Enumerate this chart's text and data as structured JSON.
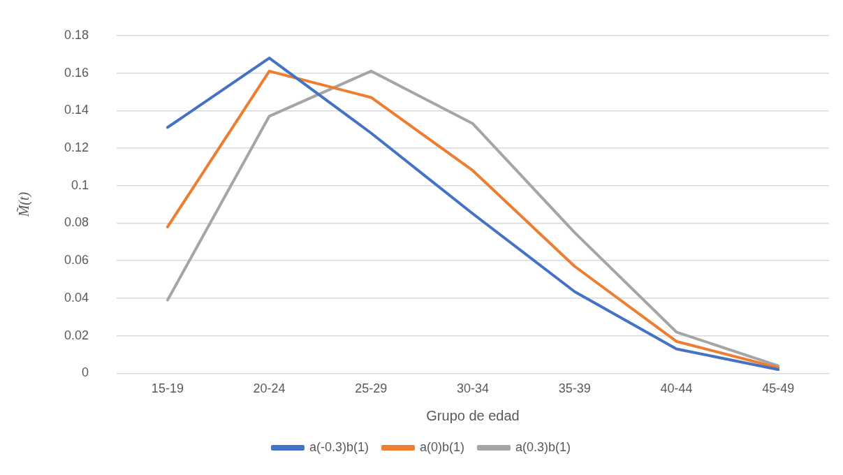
{
  "chart_data": {
    "type": "line",
    "xlabel": "Grupo de edad",
    "ylabel": "M̃(t)",
    "categories": [
      "15-19",
      "20-24",
      "25-29",
      "30-34",
      "35-39",
      "40-44",
      "45-49"
    ],
    "series": [
      {
        "name": "a(-0.3)b(1)",
        "color": "#4472c4",
        "values": [
          0.131,
          0.168,
          0.128,
          0.085,
          0.0435,
          0.013,
          0.002
        ]
      },
      {
        "name": "a(0)b(1)",
        "color": "#ed7d31",
        "values": [
          0.078,
          0.161,
          0.147,
          0.108,
          0.057,
          0.017,
          0.003
        ]
      },
      {
        "name": "a(0.3)b(1)",
        "color": "#a5a5a5",
        "values": [
          0.039,
          0.137,
          0.161,
          0.133,
          0.075,
          0.022,
          0.004
        ]
      }
    ],
    "ylim": [
      0,
      0.18
    ],
    "yticks": [
      0,
      0.02,
      0.04,
      0.06,
      0.08,
      0.1,
      0.12,
      0.14,
      0.16,
      0.18
    ],
    "grid": "y",
    "legend": "bottom",
    "marker": "none",
    "line_style": "solid"
  }
}
